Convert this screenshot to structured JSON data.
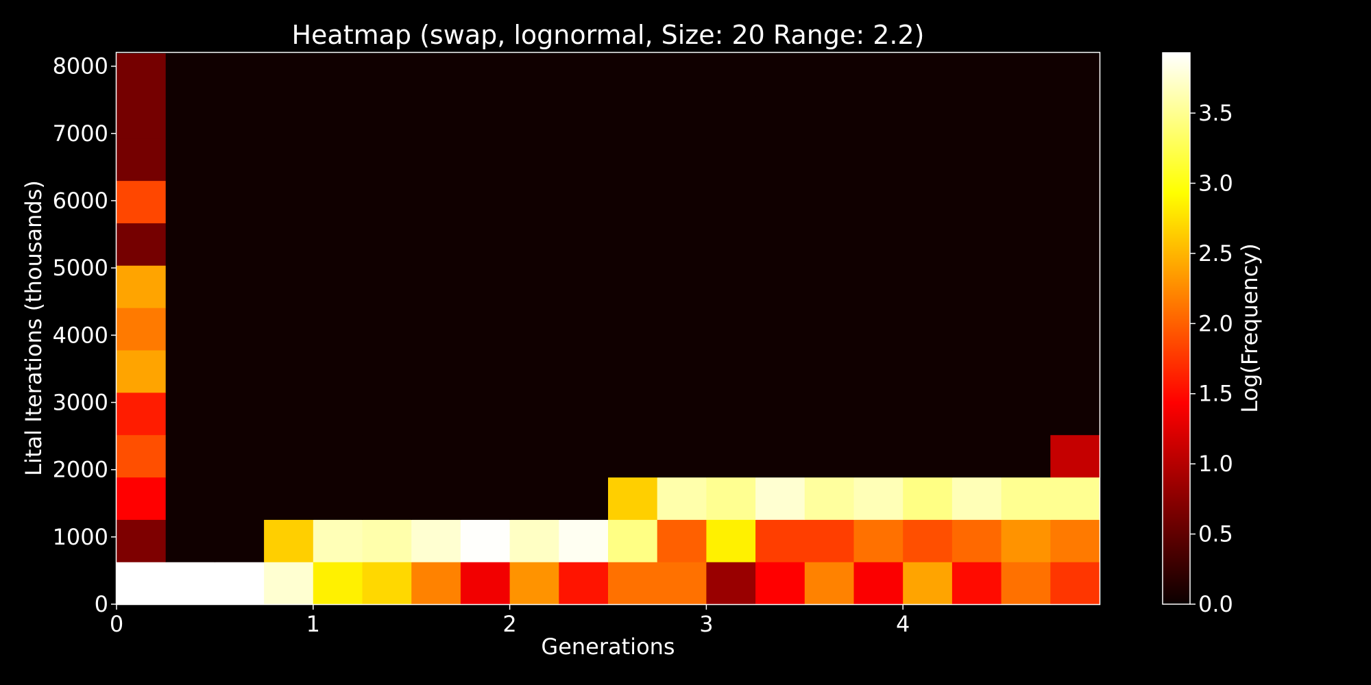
{
  "chart_data": {
    "type": "heatmap",
    "title": "Heatmap (swap, lognormal, Size: 20 Range: 2.2)",
    "xlabel": "Generations",
    "ylabel": "Lital Iterations (thousands)",
    "colorbar_label": "Log(Frequency)",
    "colormap": "hot",
    "background": "#000000",
    "xlim": [
      0,
      5
    ],
    "ylim": [
      0,
      8200
    ],
    "x_ticks": [
      0,
      1,
      2,
      3,
      4
    ],
    "y_ticks": [
      0,
      1000,
      2000,
      3000,
      4000,
      5000,
      6000,
      7000,
      8000
    ],
    "colorbar_range": [
      0,
      3.93
    ],
    "colorbar_ticks": [
      "0.0",
      "0.5",
      "1.0",
      "1.5",
      "2.0",
      "2.5",
      "3.0",
      "3.5"
    ],
    "x_bin_width": 0.25,
    "y_bin_height": 630,
    "values": [
      [
        3.93,
        3.93,
        3.93,
        3.75,
        2.85,
        2.7,
        2.2,
        1.3,
        2.3,
        1.55,
        2.1,
        2.1,
        0.8,
        1.4,
        2.2,
        1.35,
        2.4,
        1.5,
        2.1,
        1.75
      ],
      [
        0.65,
        0.03,
        0.03,
        2.65,
        3.65,
        3.6,
        3.75,
        3.92,
        3.7,
        3.88,
        3.45,
        2.0,
        2.85,
        1.8,
        1.8,
        2.1,
        1.9,
        2.05,
        2.3,
        2.15
      ],
      [
        1.4,
        0.03,
        0.03,
        0.03,
        0.03,
        0.03,
        0.03,
        0.03,
        0.03,
        0.03,
        2.65,
        3.6,
        3.5,
        3.75,
        3.55,
        3.65,
        3.45,
        3.65,
        3.5,
        3.5
      ],
      [
        1.9,
        0.03,
        0.03,
        0.03,
        0.03,
        0.03,
        0.03,
        0.03,
        0.03,
        0.03,
        0.03,
        0.03,
        0.03,
        0.03,
        0.03,
        0.03,
        0.03,
        0.03,
        0.03,
        1.05
      ],
      [
        1.6,
        0.03,
        0.03,
        0.03,
        0.03,
        0.03,
        0.03,
        0.03,
        0.03,
        0.03,
        0.03,
        0.03,
        0.03,
        0.03,
        0.03,
        0.03,
        0.03,
        0.03,
        0.03,
        0.03
      ],
      [
        2.4,
        0.03,
        0.03,
        0.03,
        0.03,
        0.03,
        0.03,
        0.03,
        0.03,
        0.03,
        0.03,
        0.03,
        0.03,
        0.03,
        0.03,
        0.03,
        0.03,
        0.03,
        0.03,
        0.03
      ],
      [
        2.15,
        0.03,
        0.03,
        0.03,
        0.03,
        0.03,
        0.03,
        0.03,
        0.03,
        0.03,
        0.03,
        0.03,
        0.03,
        0.03,
        0.03,
        0.03,
        0.03,
        0.03,
        0.03,
        0.03
      ],
      [
        2.4,
        0.03,
        0.03,
        0.03,
        0.03,
        0.03,
        0.03,
        0.03,
        0.03,
        0.03,
        0.03,
        0.03,
        0.03,
        0.03,
        0.03,
        0.03,
        0.03,
        0.03,
        0.03,
        0.03
      ],
      [
        0.6,
        0.03,
        0.03,
        0.03,
        0.03,
        0.03,
        0.03,
        0.03,
        0.03,
        0.03,
        0.03,
        0.03,
        0.03,
        0.03,
        0.03,
        0.03,
        0.03,
        0.03,
        0.03,
        0.03
      ],
      [
        1.85,
        0.03,
        0.03,
        0.03,
        0.03,
        0.03,
        0.03,
        0.03,
        0.03,
        0.03,
        0.03,
        0.03,
        0.03,
        0.03,
        0.03,
        0.03,
        0.03,
        0.03,
        0.03,
        0.03
      ],
      [
        0.6,
        0.03,
        0.03,
        0.03,
        0.03,
        0.03,
        0.03,
        0.03,
        0.03,
        0.03,
        0.03,
        0.03,
        0.03,
        0.03,
        0.03,
        0.03,
        0.03,
        0.03,
        0.03,
        0.03
      ],
      [
        0.6,
        0.03,
        0.03,
        0.03,
        0.03,
        0.03,
        0.03,
        0.03,
        0.03,
        0.03,
        0.03,
        0.03,
        0.03,
        0.03,
        0.03,
        0.03,
        0.03,
        0.03,
        0.03,
        0.03
      ],
      [
        0.6,
        0.03,
        0.03,
        0.03,
        0.03,
        0.03,
        0.03,
        0.03,
        0.03,
        0.03,
        0.03,
        0.03,
        0.03,
        0.03,
        0.03,
        0.03,
        0.03,
        0.03,
        0.03,
        0.03
      ]
    ]
  }
}
